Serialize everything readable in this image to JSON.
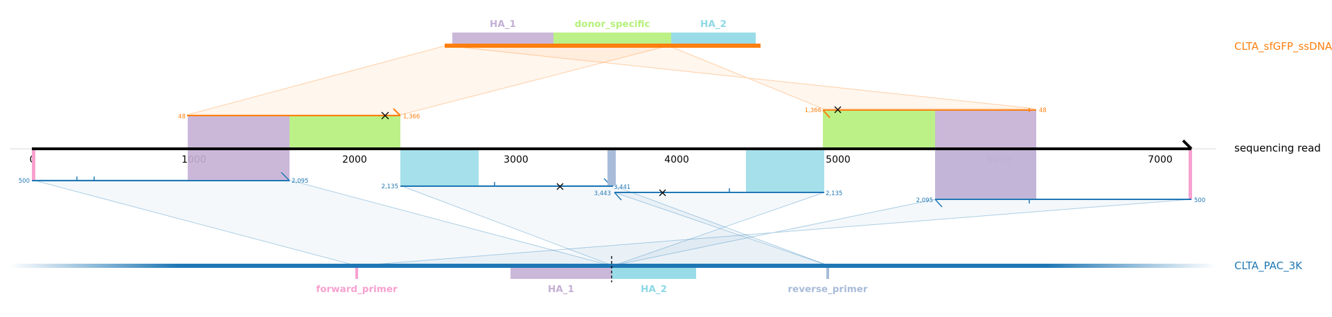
{
  "diagram": {
    "reference_labels": {
      "donor": "CLTA_sfGFP_ssDNA",
      "read": "sequencing read",
      "target": "CLTA_PAC_3K"
    },
    "donor_features": [
      {
        "name": "HA_1",
        "color": "#c5b0d5"
      },
      {
        "name": "donor_specific",
        "color": "#b5f07a"
      },
      {
        "name": "HA_2",
        "color": "#8ed8e6"
      }
    ],
    "target_features": [
      {
        "name": "forward_primer",
        "color": "#f7a1d0"
      },
      {
        "name": "HA_1",
        "color": "#c5b0d5"
      },
      {
        "name": "HA_2",
        "color": "#8ed8e6"
      },
      {
        "name": "reverse_primer",
        "color": "#a8bcd9"
      }
    ],
    "read_ticks": [
      "0",
      "1000",
      "2000",
      "3000",
      "4000",
      "5000",
      "6000",
      "7000"
    ],
    "alignment_labels": {
      "donor_left_start": "48",
      "donor_left_end": "1,366",
      "donor_right_start": "1,366",
      "donor_right_end": "48",
      "target1_start": "500",
      "target1_end": "2,095",
      "target2_start": "2,135",
      "target2_end": "3,441",
      "target3_start": "3,443",
      "target3_end": "2,135",
      "target4_start": "2,095",
      "target4_end": "500"
    },
    "colors": {
      "donor": "#ff7f0e",
      "target": "#1f77b4",
      "read": "#000000"
    }
  }
}
